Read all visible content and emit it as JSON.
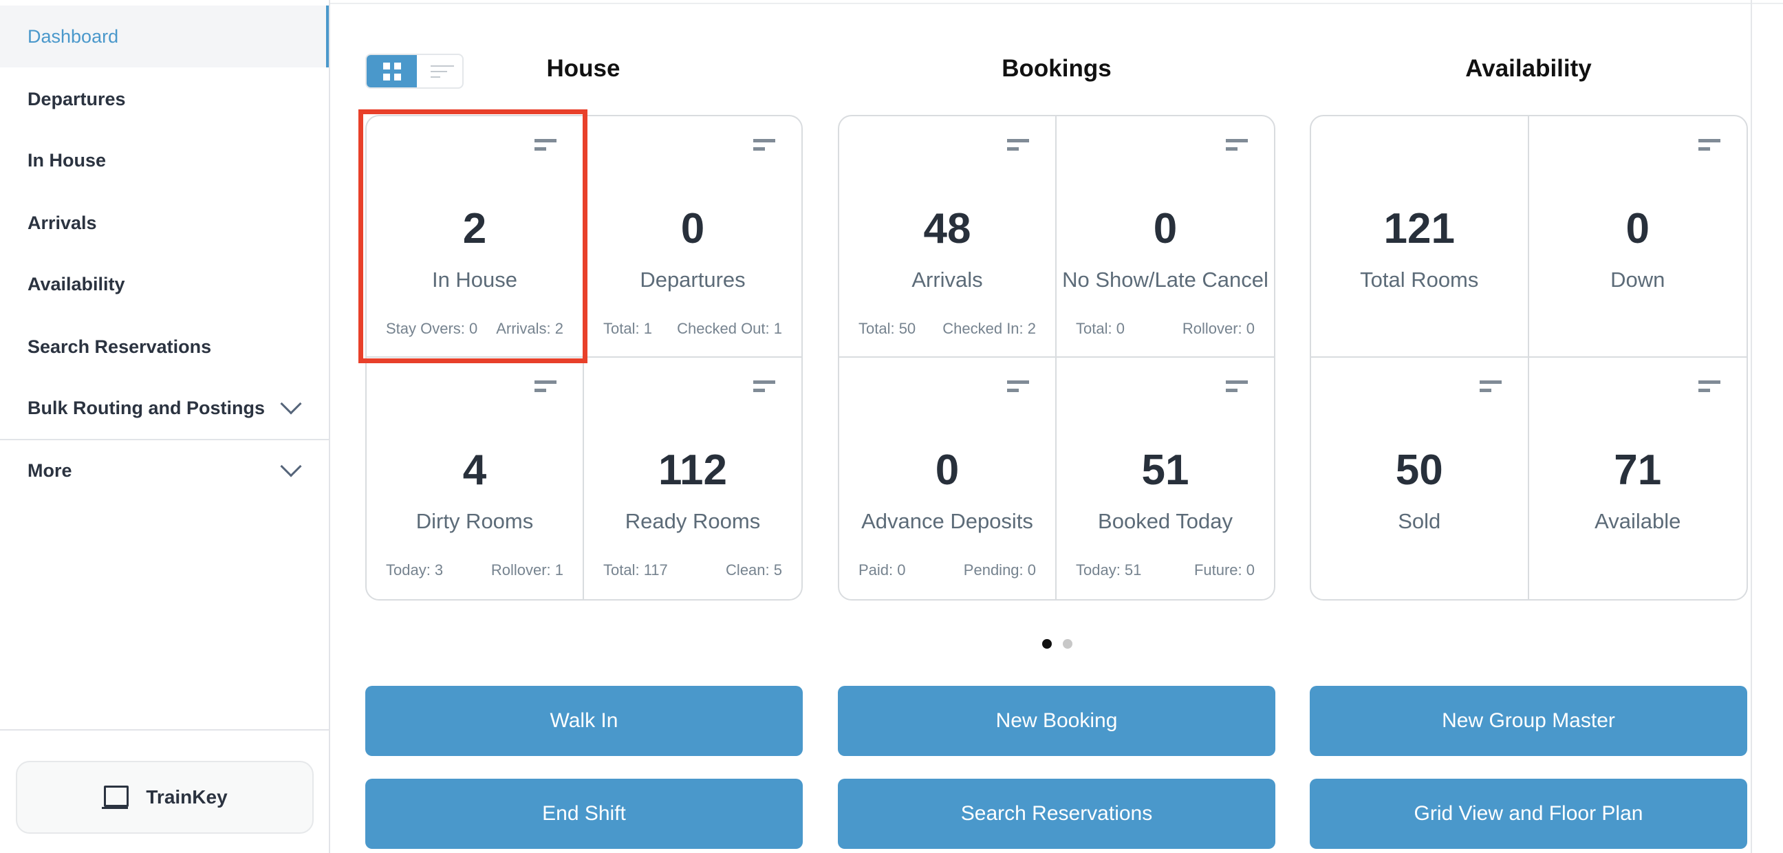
{
  "sidebar": {
    "items": [
      {
        "label": "Dashboard",
        "active": true
      },
      {
        "label": "Departures"
      },
      {
        "label": "In House"
      },
      {
        "label": "Arrivals"
      },
      {
        "label": "Availability"
      },
      {
        "label": "Search Reservations"
      },
      {
        "label": "Bulk Routing and Postings",
        "expandable": true
      }
    ],
    "more": "More",
    "trainkey": "TrainKey"
  },
  "view_toggle": {
    "selected": "grid",
    "options": [
      "grid-icon",
      "list-icon"
    ]
  },
  "sections": [
    {
      "title": "House",
      "cards": [
        {
          "value": "2",
          "label": "In House",
          "sub": [
            "Stay Overs: 0",
            "Arrivals: 2"
          ],
          "highlighted": true
        },
        {
          "value": "0",
          "label": "Departures",
          "sub": [
            "Total: 1",
            "Checked Out: 1"
          ]
        },
        {
          "value": "4",
          "label": "Dirty Rooms",
          "sub": [
            "Today: 3",
            "Rollover: 1"
          ]
        },
        {
          "value": "112",
          "label": "Ready Rooms",
          "sub": [
            "Total: 117",
            "Clean: 5"
          ]
        }
      ]
    },
    {
      "title": "Bookings",
      "cards": [
        {
          "value": "48",
          "label": "Arrivals",
          "sub": [
            "Total: 50",
            "Checked In: 2"
          ]
        },
        {
          "value": "0",
          "label": "No Show/Late Cancel",
          "sub": [
            "Total: 0",
            "Rollover: 0"
          ]
        },
        {
          "value": "0",
          "label": "Advance Deposits",
          "sub": [
            "Paid: 0",
            "Pending: 0"
          ]
        },
        {
          "value": "51",
          "label": "Booked Today",
          "sub": [
            "Today: 51",
            "Future: 0"
          ]
        }
      ]
    },
    {
      "title": "Availability",
      "cards": [
        {
          "value": "121",
          "label": "Total Rooms",
          "sub": []
        },
        {
          "value": "0",
          "label": "Down",
          "sub": []
        },
        {
          "value": "50",
          "label": "Sold",
          "sub": []
        },
        {
          "value": "71",
          "label": "Available",
          "sub": []
        }
      ]
    }
  ],
  "pager": {
    "pages": 2,
    "current": 1
  },
  "buttons": [
    "Walk In",
    "New Booking",
    "New Group Master",
    "End Shift",
    "Search Reservations",
    "Grid View and Floor Plan"
  ],
  "colors": {
    "accent": "#4a98cb",
    "highlight": "#e8402a",
    "text": "#28303b"
  }
}
